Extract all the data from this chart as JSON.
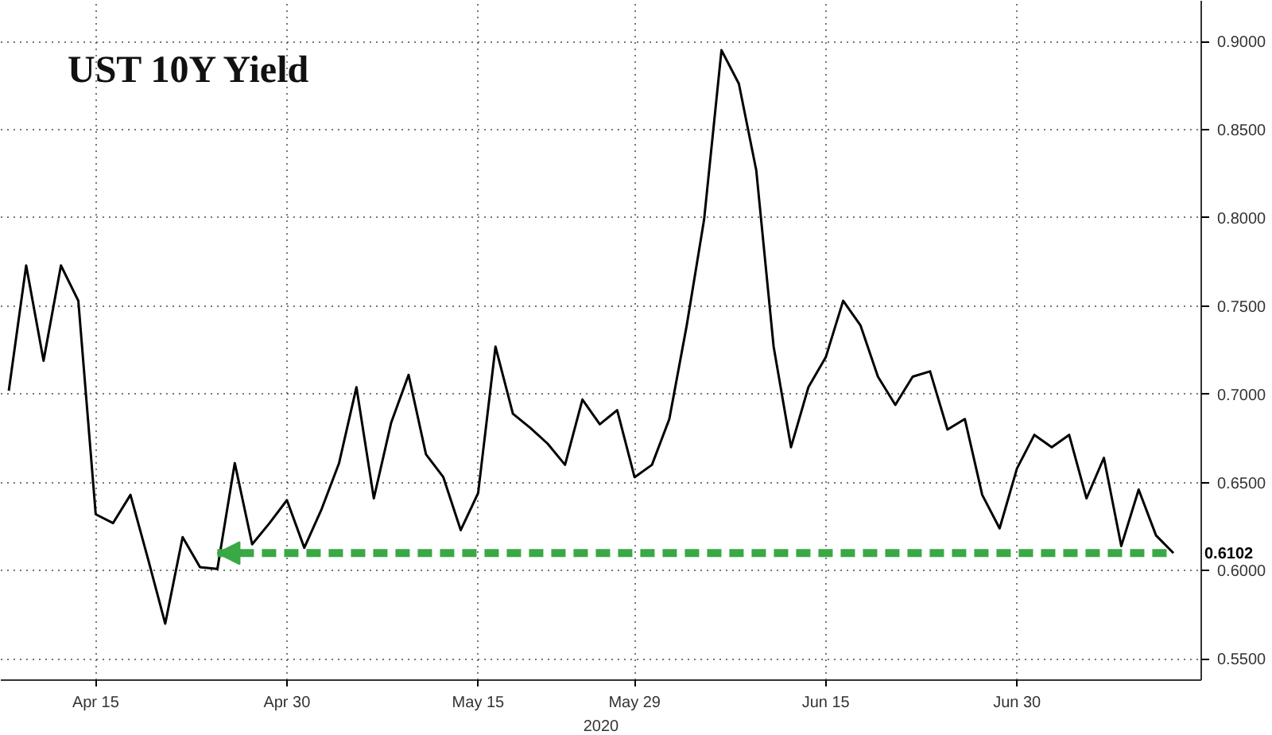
{
  "chart_data": {
    "type": "line",
    "title": "UST 10Y Yield",
    "xlabel": "2020",
    "categories": [
      null,
      null,
      null,
      null,
      null,
      "Apr 15",
      null,
      null,
      null,
      null,
      null,
      null,
      null,
      null,
      null,
      null,
      "Apr 30",
      null,
      null,
      null,
      null,
      null,
      null,
      null,
      null,
      null,
      null,
      "May 15",
      null,
      null,
      null,
      null,
      null,
      null,
      null,
      null,
      "May 29",
      null,
      null,
      null,
      null,
      null,
      null,
      null,
      null,
      null,
      null,
      "Jun 15",
      null,
      null,
      null,
      null,
      null,
      null,
      null,
      null,
      null,
      null,
      "Jun 30",
      null,
      null,
      null,
      null,
      null,
      null,
      null,
      null,
      null
    ],
    "series": [
      {
        "color": "#000000",
        "line_style": "solid",
        "values": [
          0.702,
          0.773,
          0.719,
          0.773,
          0.753,
          0.632,
          0.627,
          0.643,
          0.607,
          0.57,
          0.619,
          0.602,
          0.601,
          0.661,
          0.615,
          0.627,
          0.64,
          0.613,
          0.635,
          0.661,
          0.704,
          0.641,
          0.684,
          0.711,
          0.666,
          0.653,
          0.623,
          0.644,
          0.727,
          0.689,
          0.681,
          0.672,
          0.66,
          0.697,
          0.683,
          0.691,
          0.653,
          0.66,
          0.686,
          0.739,
          0.799,
          0.895,
          0.876,
          0.827,
          0.727,
          0.67,
          0.704,
          0.721,
          0.753,
          0.739,
          0.71,
          0.694,
          0.71,
          0.713,
          0.68,
          0.686,
          0.643,
          0.624,
          0.658,
          0.677,
          0.67,
          0.677,
          0.641,
          0.664,
          0.614,
          0.646,
          0.62,
          0.61
        ]
      },
      {
        "color": "#3aa845",
        "line_style": "dashed",
        "values": [
          null,
          null,
          null,
          null,
          null,
          null,
          null,
          null,
          null,
          null,
          null,
          null,
          0.61,
          0.61,
          0.61,
          0.61,
          0.61,
          0.61,
          0.61,
          0.61,
          0.61,
          0.61,
          0.61,
          0.61,
          0.61,
          0.61,
          0.61,
          0.61,
          0.61,
          0.61,
          0.61,
          0.61,
          0.61,
          0.61,
          0.61,
          0.61,
          0.61,
          0.61,
          0.61,
          0.61,
          0.61,
          0.61,
          0.61,
          0.61,
          0.61,
          0.61,
          0.61,
          0.61,
          0.61,
          0.61,
          0.61,
          0.61,
          0.61,
          0.61,
          0.61,
          0.61,
          0.61,
          0.61,
          0.61,
          0.61,
          0.61,
          0.61,
          0.61,
          0.61,
          0.61,
          0.61,
          0.61,
          0.61
        ]
      }
    ],
    "annotations": [
      "0.6102"
    ],
    "ylim": [
      0.538,
      0.923
    ],
    "yticks": [
      {
        "value": 0.55,
        "label": "0.5500"
      },
      {
        "value": 0.6,
        "label": "0.6000"
      },
      {
        "value": 0.65,
        "label": "0.6500"
      },
      {
        "value": 0.7,
        "label": "0.7000"
      },
      {
        "value": 0.75,
        "label": "0.7500"
      },
      {
        "value": 0.8,
        "label": "0.8000"
      },
      {
        "value": 0.85,
        "label": "0.8500"
      },
      {
        "value": 0.9,
        "label": "0.9000"
      }
    ],
    "grid": true,
    "marker": "none"
  }
}
